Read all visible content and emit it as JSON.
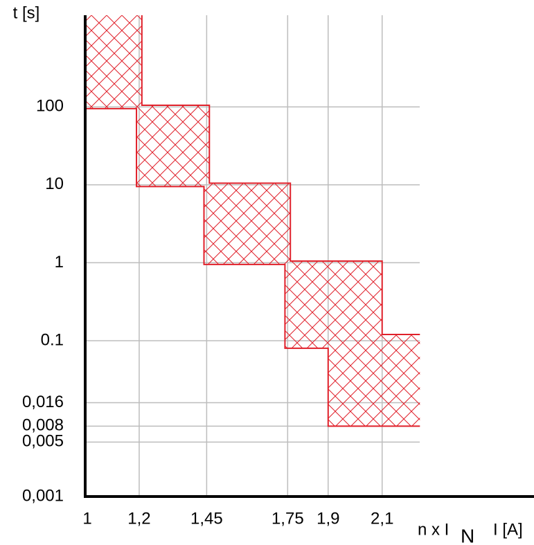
{
  "chart_data": {
    "type": "band",
    "ylabel": "t [s]",
    "xlabel": "n x I",
    "xlabel_sub": "N",
    "xlabel_unit": "I [A]",
    "xlim": [
      1,
      2.66
    ],
    "xticks": [
      1,
      {
        "value": 1.2,
        "label": "1,2"
      },
      {
        "value": 1.45,
        "label": "1,45"
      },
      {
        "value": 1.75,
        "label": "1,75"
      },
      {
        "value": 1.9,
        "label": "1,9"
      },
      {
        "value": 2.1,
        "label": "2,1"
      }
    ],
    "ylim": [
      0.001,
      1500
    ],
    "ylog": true,
    "yticks": [
      {
        "value": 0.001,
        "label": "0,001"
      },
      {
        "value": 0.005,
        "label": "0,005"
      },
      {
        "value": 0.008,
        "label": "0,008"
      },
      {
        "value": 0.016,
        "label": "0,016"
      },
      0.1,
      1,
      10,
      100
    ],
    "grid": true,
    "color": "#e0202a",
    "upper": {
      "x": [
        1.21,
        1.21,
        1.46,
        1.46,
        1.76,
        1.76,
        2.1,
        2.1,
        2.24
      ],
      "y": [
        1500,
        105,
        105,
        10.5,
        10.5,
        1.05,
        1.05,
        0.12,
        0.12
      ]
    },
    "lower": {
      "x": [
        1,
        1.19,
        1.19,
        1.44,
        1.44,
        1.74,
        1.74,
        1.9,
        1.9,
        2.24
      ],
      "y": [
        95,
        95,
        9.5,
        9.5,
        0.95,
        0.95,
        0.08,
        0.08,
        0.008,
        0.008
      ]
    }
  }
}
